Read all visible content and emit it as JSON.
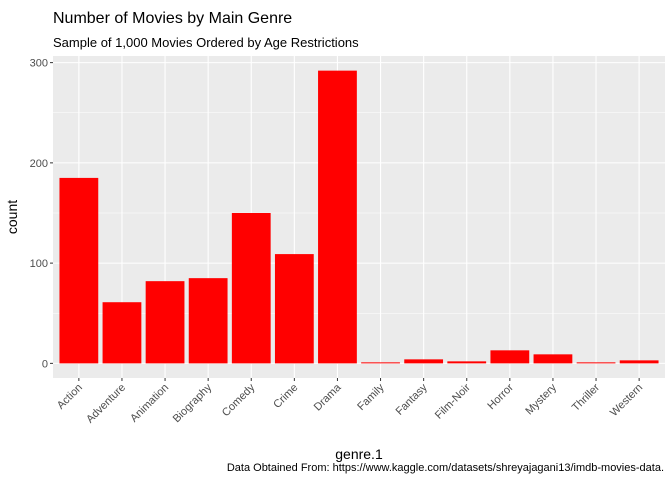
{
  "chart_data": {
    "type": "bar",
    "title": "Number of Movies by Main Genre",
    "subtitle": "Sample of 1,000 Movies Ordered by Age Restrictions",
    "xlabel": "genre.1",
    "ylabel": "count",
    "caption": "Data Obtained From: https://www.kaggle.com/datasets/shreyajagani13/imdb-movies-data.",
    "categories": [
      "Action",
      "Adventure",
      "Animation",
      "Biography",
      "Comedy",
      "Crime",
      "Drama",
      "Family",
      "Fantasy",
      "Film-Noir",
      "Horror",
      "Mystery",
      "Thriller",
      "Western"
    ],
    "values": [
      185,
      61,
      82,
      85,
      150,
      109,
      292,
      1,
      4,
      2,
      13,
      9,
      1,
      3
    ],
    "ylim": [
      -14.6,
      306.6
    ],
    "yticks": [
      0,
      100,
      200,
      300
    ],
    "grid": true,
    "bar_color": "#FF0000",
    "panel_background": "#EBEBEB",
    "grid_color": "#FFFFFF"
  }
}
